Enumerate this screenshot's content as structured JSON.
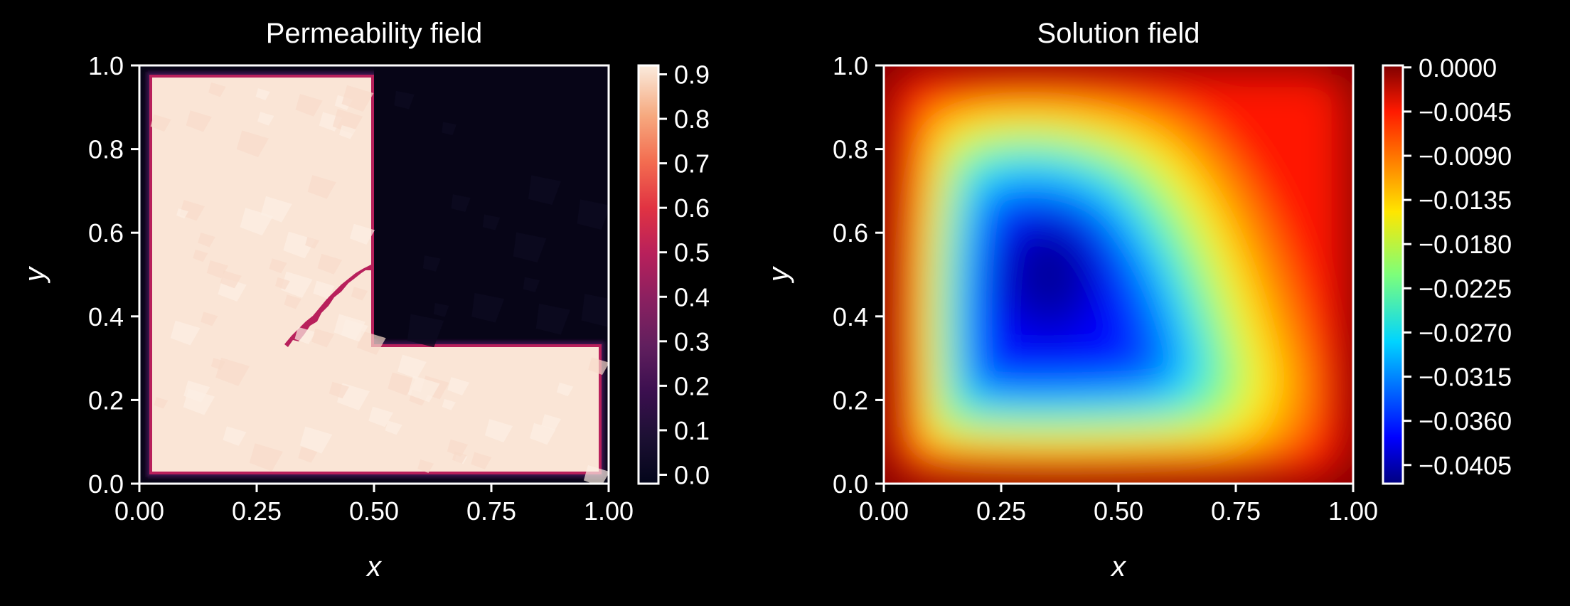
{
  "chart_data": [
    {
      "type": "heatmap",
      "title": "Permeability field",
      "xlabel": "x",
      "ylabel": "y",
      "xlim": [
        0,
        1
      ],
      "ylim": [
        0,
        1
      ],
      "xticks": [
        "0.00",
        "0.25",
        "0.50",
        "0.75",
        "1.00"
      ],
      "yticks": [
        "0.0",
        "0.2",
        "0.4",
        "0.6",
        "0.8",
        "1.0"
      ],
      "colormap": "rocket",
      "colorbar": {
        "ticks": [
          "0.0",
          "0.1",
          "0.2",
          "0.3",
          "0.4",
          "0.5",
          "0.6",
          "0.7",
          "0.8",
          "0.9"
        ],
        "values": [
          0.0,
          0.1,
          0.2,
          0.3,
          0.4,
          0.5,
          0.6,
          0.7,
          0.8,
          0.9
        ],
        "range": [
          -0.02,
          0.92
        ]
      },
      "field": {
        "high_value": 0.9,
        "low_value": 0.0,
        "high_region": "L-shaped: x in [0.02, 0.5] for y in [0.32, 0.98], plus x in [0.02, 0.98] for y in [0.02, 0.32]",
        "low_region": "upper-right quadrant x > 0.5, y > 0.32 and thin boundary strip"
      }
    },
    {
      "type": "heatmap",
      "title": "Solution field",
      "xlabel": "x",
      "ylabel": "y",
      "xlim": [
        0,
        1
      ],
      "ylim": [
        0,
        1
      ],
      "xticks": [
        "0.00",
        "0.25",
        "0.50",
        "0.75",
        "1.00"
      ],
      "yticks": [
        "0.0",
        "0.2",
        "0.4",
        "0.6",
        "0.8",
        "1.0"
      ],
      "colormap": "jet",
      "colorbar": {
        "ticks": [
          "0.0000",
          "−0.0045",
          "−0.0090",
          "−0.0135",
          "−0.0180",
          "−0.0225",
          "−0.0270",
          "−0.0315",
          "−0.0360",
          "−0.0405"
        ],
        "values": [
          0.0,
          -0.0045,
          -0.009,
          -0.0135,
          -0.018,
          -0.0225,
          -0.027,
          -0.0315,
          -0.036,
          -0.0405
        ],
        "range": [
          -0.0424,
          0.0002
        ]
      },
      "field": {
        "min_value": -0.042,
        "min_location": [
          0.35,
          0.5
        ],
        "boundary_value": 0.0
      }
    }
  ]
}
